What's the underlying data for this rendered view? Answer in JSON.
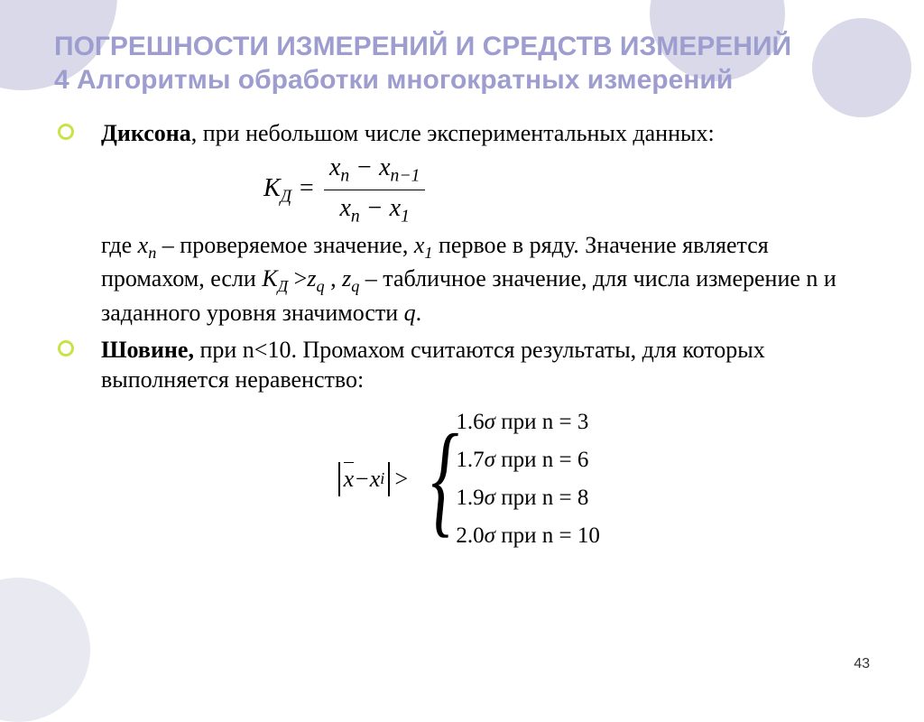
{
  "title": "ПОГРЕШНОСТИ ИЗМЕРЕНИЙ И СРЕДСТВ ИЗМЕРЕНИЙ\n4 Алгоритмы обработки многократных измерений",
  "bullet1": {
    "lead": "Диксона",
    "rest": ", при небольшом числе экспериментальных данных:"
  },
  "formula1": {
    "lhs_k": "К",
    "lhs_sub": "Д",
    "eq": " = ",
    "num_a": "x",
    "num_a_sub": "n",
    "num_minus": " − ",
    "num_b": "x",
    "num_b_sub": "n−1",
    "den_a": "x",
    "den_a_sub": "n",
    "den_minus": " − ",
    "den_b": "x",
    "den_b_sub": "1"
  },
  "para1": {
    "t1": "где ",
    "xn": "x",
    "xn_sub": "n",
    "t2": " – проверяемое значение, ",
    "x1": "x",
    "x1_sub": "1",
    "t3": " первое в ряду. Значение является промахом, если ",
    "kd": "К",
    "kd_sub": "Д",
    "t4": " >",
    "zq": "z",
    "zq_sub": "q",
    "t5": " , ",
    "zq2": "z",
    "zq2_sub": "q",
    "t6": " – табличное значение, для числа измерение n и заданного уровня значимости ",
    "q": "q",
    "t7": "."
  },
  "bullet2": {
    "lead": "Шовине,",
    "rest": " при n<10. Промахом считаются результаты, для которых выполняется неравенство:"
  },
  "formula2": {
    "xbar": "x",
    "minus": " − ",
    "xi": "x",
    "xi_sub": "i",
    "gt": " > ",
    "cases": [
      {
        "coef": "1.6",
        "sigma": "σ",
        "text": " при n = 3"
      },
      {
        "coef": "1.7",
        "sigma": "σ",
        "text": " при n = 6"
      },
      {
        "coef": "1.9",
        "sigma": "σ",
        "text": " при n = 8"
      },
      {
        "coef": "2.0",
        "sigma": "σ",
        "text": " при n = 10"
      }
    ]
  },
  "page_number": "43",
  "colors": {
    "title": "#9d9dcf",
    "bullet_ring": "#c9e24a",
    "bg_circle": "#d9d9e9"
  }
}
